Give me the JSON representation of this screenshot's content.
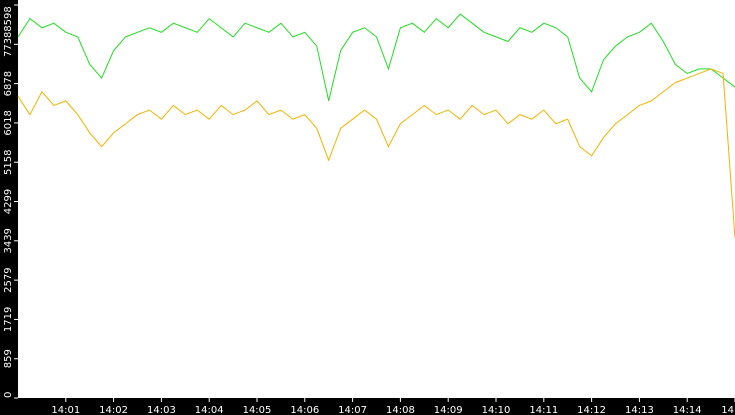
{
  "chart_data": {
    "type": "line",
    "x": [
      0,
      0.25,
      0.5,
      0.75,
      1,
      1.25,
      1.5,
      1.75,
      2,
      2.25,
      2.5,
      2.75,
      3,
      3.25,
      3.5,
      3.75,
      4,
      4.25,
      4.5,
      4.75,
      5,
      5.25,
      5.5,
      5.75,
      6,
      6.25,
      6.5,
      6.75,
      7,
      7.25,
      7.5,
      7.75,
      8,
      8.25,
      8.5,
      8.75,
      9,
      9.25,
      9.5,
      9.75,
      10,
      10.25,
      10.5,
      10.75,
      11,
      11.25,
      11.5,
      11.75,
      12,
      12.25,
      12.5,
      12.75,
      13,
      13.25,
      13.5,
      13.75,
      14,
      14.25,
      14.5,
      14.75,
      15
    ],
    "series": [
      {
        "color": "#22dd22",
        "values": [
          7900,
          8300,
          8100,
          8200,
          8000,
          7900,
          7300,
          7000,
          7600,
          7900,
          8000,
          8100,
          8000,
          8200,
          8100,
          8000,
          8300,
          8100,
          7900,
          8200,
          8100,
          8000,
          8200,
          7900,
          8000,
          7700,
          6500,
          7600,
          8000,
          8100,
          7900,
          7200,
          8100,
          8200,
          8000,
          8300,
          8100,
          8400,
          8200,
          8000,
          7900,
          7800,
          8100,
          8000,
          8200,
          8100,
          7900,
          7000,
          6700,
          7400,
          7700,
          7900,
          8000,
          8200,
          7800,
          7300,
          7100,
          7200,
          7200,
          7000,
          6800
        ]
      },
      {
        "color": "#f0b400",
        "values": [
          6600,
          6200,
          6700,
          6400,
          6500,
          6200,
          5800,
          5500,
          5800,
          6000,
          6200,
          6300,
          6100,
          6400,
          6200,
          6300,
          6100,
          6400,
          6200,
          6300,
          6500,
          6200,
          6300,
          6100,
          6200,
          5900,
          5200,
          5900,
          6100,
          6300,
          6100,
          5500,
          6000,
          6200,
          6400,
          6200,
          6300,
          6100,
          6400,
          6200,
          6300,
          6000,
          6200,
          6100,
          6300,
          6000,
          6100,
          5500,
          5300,
          5700,
          6000,
          6200,
          6400,
          6500,
          6700,
          6900,
          7000,
          7100,
          7200,
          7100,
          3500
        ]
      }
    ],
    "xlim": [
      0,
      15
    ],
    "xticks": [
      {
        "value": 1,
        "label": "14:01"
      },
      {
        "value": 2,
        "label": "14:02"
      },
      {
        "value": 3,
        "label": "14:03"
      },
      {
        "value": 4,
        "label": "14:04"
      },
      {
        "value": 5,
        "label": "14:05"
      },
      {
        "value": 6,
        "label": "14:06"
      },
      {
        "value": 7,
        "label": "14:07"
      },
      {
        "value": 8,
        "label": "14:08"
      },
      {
        "value": 9,
        "label": "14:09"
      },
      {
        "value": 10,
        "label": "14:10"
      },
      {
        "value": 11,
        "label": "14:11"
      },
      {
        "value": 12,
        "label": "14:12"
      },
      {
        "value": 13,
        "label": "14:13"
      },
      {
        "value": 14,
        "label": "14:14"
      },
      {
        "value": 15,
        "label": "14"
      }
    ],
    "ylim": [
      0,
      8598
    ],
    "yticks": [
      0,
      859,
      1719,
      2579,
      3439,
      4299,
      5158,
      6018,
      6878,
      7738,
      8598
    ]
  }
}
